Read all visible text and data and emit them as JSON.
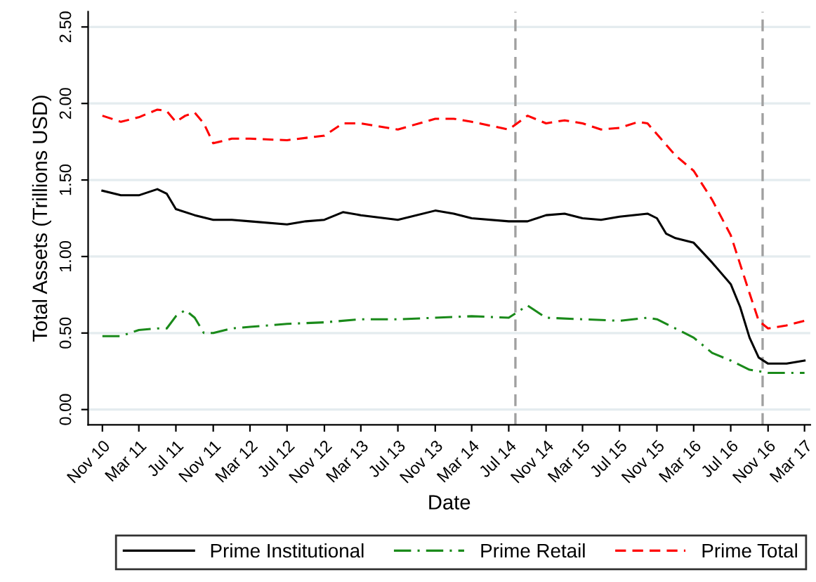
{
  "chart_data": {
    "type": "line",
    "xlabel": "Date",
    "ylabel": "Total Assets (Trillions USD)",
    "xlim": [
      "2010-09-15",
      "2017-03-20"
    ],
    "ylim": [
      -0.1,
      2.6
    ],
    "xticks": [
      {
        "value": "2010-11",
        "label": "Nov 10"
      },
      {
        "value": "2011-03",
        "label": "Mar 11"
      },
      {
        "value": "2011-07",
        "label": "Jul 11"
      },
      {
        "value": "2011-11",
        "label": "Nov 11"
      },
      {
        "value": "2012-03",
        "label": "Mar 12"
      },
      {
        "value": "2012-07",
        "label": "Jul 12"
      },
      {
        "value": "2012-11",
        "label": "Nov 12"
      },
      {
        "value": "2013-03",
        "label": "Mar 13"
      },
      {
        "value": "2013-07",
        "label": "Jul 13"
      },
      {
        "value": "2013-11",
        "label": "Nov 13"
      },
      {
        "value": "2014-03",
        "label": "Mar 14"
      },
      {
        "value": "2014-07",
        "label": "Jul 14"
      },
      {
        "value": "2014-11",
        "label": "Nov 14"
      },
      {
        "value": "2015-03",
        "label": "Mar 15"
      },
      {
        "value": "2015-07",
        "label": "Jul 15"
      },
      {
        "value": "2015-11",
        "label": "Nov 15"
      },
      {
        "value": "2016-03",
        "label": "Mar 16"
      },
      {
        "value": "2016-07",
        "label": "Jul 16"
      },
      {
        "value": "2016-11",
        "label": "Nov 16"
      },
      {
        "value": "2017-03",
        "label": "Mar 17"
      }
    ],
    "yticks": [
      {
        "value": 0,
        "label": "0.00"
      },
      {
        "value": 0.5,
        "label": "0.50"
      },
      {
        "value": 1,
        "label": "1.00"
      },
      {
        "value": 1.5,
        "label": "1.50"
      },
      {
        "value": 2,
        "label": "2.00"
      },
      {
        "value": 2.5,
        "label": "2.50"
      }
    ],
    "grid": "y",
    "legend": "bottom",
    "ref_lines": [
      {
        "axis": "x",
        "value": "2014-07-23",
        "color": "#a0a0a0",
        "line_style": "dashed"
      },
      {
        "axis": "x",
        "value": "2016-10-14",
        "color": "#a0a0a0",
        "line_style": "dashed"
      }
    ],
    "series": [
      {
        "name": "Prime Institutional",
        "color": "#000000",
        "line_style": "solid",
        "x": [
          "2010-11",
          "2011-01",
          "2011-03",
          "2011-05",
          "2011-06",
          "2011-07",
          "2011-09",
          "2011-11",
          "2012-01",
          "2012-03",
          "2012-07",
          "2012-09",
          "2012-11",
          "2013-01",
          "2013-03",
          "2013-07",
          "2013-11",
          "2014-01",
          "2014-03",
          "2014-07",
          "2014-09",
          "2014-11",
          "2015-01",
          "2015-03",
          "2015-05",
          "2015-07",
          "2015-10",
          "2015-11",
          "2015-12",
          "2016-01",
          "2016-03",
          "2016-05",
          "2016-07",
          "2016-08",
          "2016-09",
          "2016-10",
          "2016-11",
          "2017-01",
          "2017-03"
        ],
        "values": [
          1.43,
          1.4,
          1.4,
          1.44,
          1.41,
          1.31,
          1.27,
          1.24,
          1.24,
          1.23,
          1.21,
          1.23,
          1.24,
          1.29,
          1.27,
          1.24,
          1.3,
          1.28,
          1.25,
          1.23,
          1.23,
          1.27,
          1.28,
          1.25,
          1.24,
          1.26,
          1.28,
          1.25,
          1.15,
          1.12,
          1.09,
          0.96,
          0.82,
          0.67,
          0.47,
          0.34,
          0.3,
          0.3,
          0.32
        ]
      },
      {
        "name": "Prime Retail",
        "color": "#1a8a1a",
        "line_style": "dashdot",
        "x": [
          "2010-11",
          "2011-01",
          "2011-03",
          "2011-05",
          "2011-06",
          "2011-07",
          "2011-08",
          "2011-09",
          "2011-10",
          "2011-11",
          "2012-01",
          "2012-03",
          "2012-07",
          "2012-11",
          "2013-03",
          "2013-07",
          "2013-11",
          "2014-03",
          "2014-07",
          "2014-09",
          "2014-10",
          "2014-11",
          "2015-03",
          "2015-07",
          "2015-10",
          "2015-11",
          "2016-01",
          "2016-03",
          "2016-05",
          "2016-07",
          "2016-09",
          "2016-11",
          "2017-01",
          "2017-03"
        ],
        "values": [
          0.48,
          0.48,
          0.52,
          0.53,
          0.53,
          0.61,
          0.65,
          0.6,
          0.5,
          0.5,
          0.53,
          0.54,
          0.56,
          0.57,
          0.59,
          0.59,
          0.6,
          0.61,
          0.6,
          0.68,
          0.64,
          0.6,
          0.59,
          0.58,
          0.6,
          0.59,
          0.53,
          0.47,
          0.37,
          0.32,
          0.26,
          0.24,
          0.24,
          0.24
        ]
      },
      {
        "name": "Prime Total",
        "color": "#ff0000",
        "line_style": "dashed",
        "x": [
          "2010-11",
          "2011-01",
          "2011-03",
          "2011-05",
          "2011-06",
          "2011-07",
          "2011-08",
          "2011-09",
          "2011-10",
          "2011-11",
          "2012-01",
          "2012-03",
          "2012-07",
          "2012-11",
          "2013-01",
          "2013-03",
          "2013-07",
          "2013-11",
          "2014-01",
          "2014-03",
          "2014-07",
          "2014-09",
          "2014-11",
          "2015-01",
          "2015-03",
          "2015-05",
          "2015-07",
          "2015-09",
          "2015-10",
          "2016-01",
          "2016-03",
          "2016-05",
          "2016-07",
          "2016-09",
          "2016-10",
          "2016-11",
          "2017-01",
          "2017-03"
        ],
        "values": [
          1.92,
          1.88,
          1.91,
          1.96,
          1.95,
          1.88,
          1.92,
          1.94,
          1.87,
          1.74,
          1.77,
          1.77,
          1.76,
          1.79,
          1.87,
          1.87,
          1.83,
          1.9,
          1.9,
          1.88,
          1.83,
          1.92,
          1.87,
          1.89,
          1.87,
          1.83,
          1.84,
          1.88,
          1.87,
          1.66,
          1.56,
          1.37,
          1.14,
          0.76,
          0.58,
          0.53,
          0.55,
          0.58
        ]
      }
    ]
  }
}
